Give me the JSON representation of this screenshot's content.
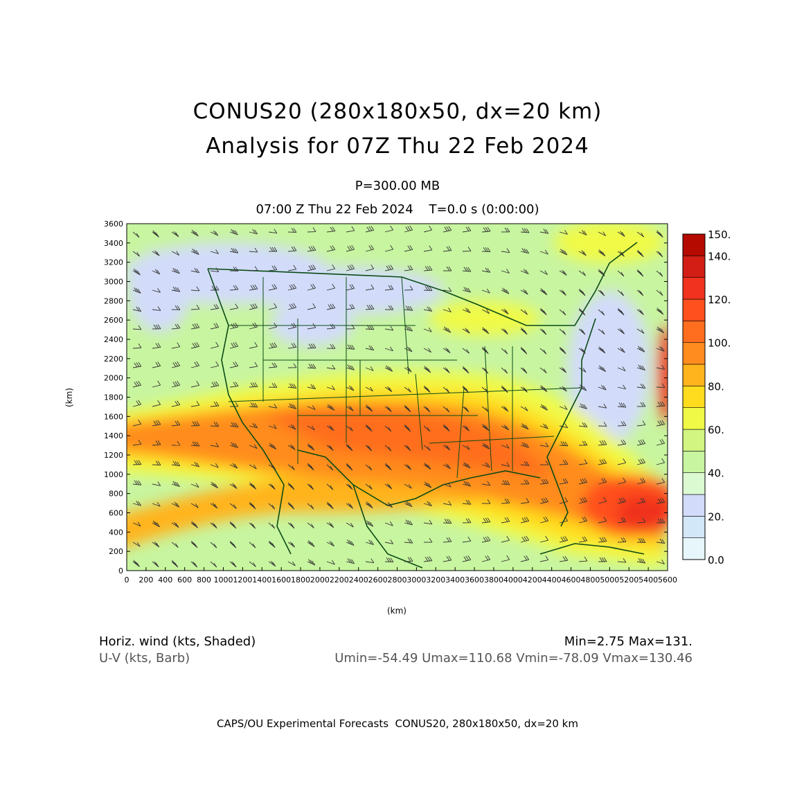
{
  "header": {
    "title_line1": "CONUS20 (280x180x50, dx=20 km)",
    "title_line2": "Analysis for 07Z Thu 22 Feb 2024",
    "level": "P=300.00 MB",
    "time_line": "07:00 Z Thu 22 Feb 2024    T=0.0 s (0:00:00)"
  },
  "map": {
    "x_axis_label": "(km)",
    "y_axis_label": "(km)",
    "x_ticks": [
      0,
      200,
      400,
      600,
      800,
      1000,
      1200,
      1400,
      1600,
      1800,
      2000,
      2200,
      2400,
      2600,
      2800,
      3000,
      3200,
      3400,
      3600,
      3800,
      4000,
      4200,
      4400,
      4600,
      4800,
      5000,
      5200,
      5400,
      5600
    ],
    "y_ticks": [
      0,
      200,
      400,
      600,
      800,
      1000,
      1200,
      1400,
      1600,
      1800,
      2000,
      2200,
      2400,
      2600,
      2800,
      3000,
      3200,
      3400,
      3600
    ],
    "x_range": [
      0,
      5600
    ],
    "y_range": [
      0,
      3600
    ],
    "background_color": "#c8f5a0",
    "border_color": "#0a4a14"
  },
  "colorbar": {
    "labels": [
      "150.",
      "140.",
      "120.",
      "100.",
      "80.",
      "60.",
      "40.",
      "20.",
      "0.0"
    ],
    "bins": [
      {
        "min": 0,
        "max": 10,
        "color": "#e6f6fb"
      },
      {
        "min": 10,
        "max": 20,
        "color": "#d2e7f8"
      },
      {
        "min": 20,
        "max": 30,
        "color": "#d2dcfa"
      },
      {
        "min": 30,
        "max": 40,
        "color": "#dcfad2"
      },
      {
        "min": 40,
        "max": 50,
        "color": "#c8f5a0"
      },
      {
        "min": 50,
        "max": 60,
        "color": "#d2f582"
      },
      {
        "min": 60,
        "max": 70,
        "color": "#f0fa46"
      },
      {
        "min": 70,
        "max": 80,
        "color": "#ffdc1e"
      },
      {
        "min": 80,
        "max": 90,
        "color": "#ffb41e"
      },
      {
        "min": 90,
        "max": 100,
        "color": "#ff8c1e"
      },
      {
        "min": 100,
        "max": 110,
        "color": "#ff6e1e"
      },
      {
        "min": 110,
        "max": 120,
        "color": "#ff501e"
      },
      {
        "min": 120,
        "max": 130,
        "color": "#f0321e"
      },
      {
        "min": 130,
        "max": 140,
        "color": "#d21e14"
      },
      {
        "min": 140,
        "max": 150,
        "color": "#b40a00"
      }
    ]
  },
  "footer": {
    "left_line1": "Horiz. wind (kts, Shaded)",
    "left_line2": "U-V (kts, Barb)",
    "right_line1": "Min=2.75 Max=131.",
    "right_line2": "Umin=-54.49 Umax=110.68 Vmin=-78.09 Vmax=130.46",
    "credit": "CAPS/OU Experimental Forecasts  CONUS20, 280x180x50, dx=20 km"
  }
}
